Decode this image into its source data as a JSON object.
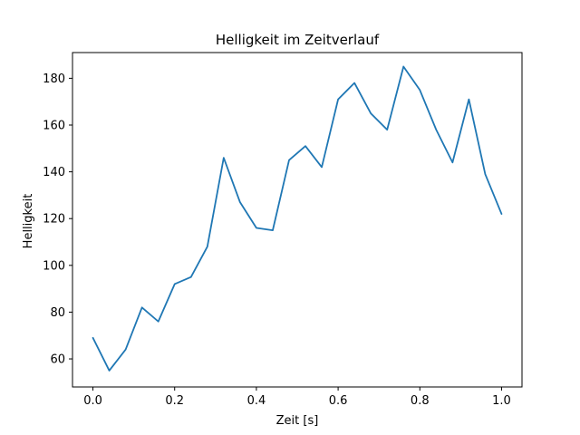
{
  "chart_data": {
    "type": "line",
    "title": "Helligkeit im Zeitverlauf",
    "xlabel": "Zeit [s]",
    "ylabel": "Helligkeit",
    "xlim": [
      -0.05,
      1.05
    ],
    "ylim": [
      48,
      191
    ],
    "xticks": [
      0.0,
      0.2,
      0.4,
      0.6,
      0.8,
      1.0
    ],
    "xtick_labels": [
      "0.0",
      "0.2",
      "0.4",
      "0.6",
      "0.8",
      "1.0"
    ],
    "yticks": [
      60,
      80,
      100,
      120,
      140,
      160,
      180
    ],
    "ytick_labels": [
      "60",
      "80",
      "100",
      "120",
      "140",
      "160",
      "180"
    ],
    "grid": false,
    "series": [
      {
        "name": "Helligkeit",
        "color": "#1f77b4",
        "x": [
          0.0,
          0.04,
          0.08,
          0.12,
          0.16,
          0.2,
          0.24,
          0.28,
          0.32,
          0.36,
          0.4,
          0.44,
          0.48,
          0.52,
          0.56,
          0.6,
          0.64,
          0.68,
          0.72,
          0.76,
          0.8,
          0.84,
          0.88,
          0.92,
          0.96,
          1.0
        ],
        "y": [
          69,
          55,
          64,
          82,
          76,
          92,
          95,
          108,
          146,
          127,
          116,
          115,
          145,
          151,
          142,
          171,
          178,
          165,
          158,
          185,
          175,
          158,
          144,
          171,
          139,
          122
        ]
      }
    ]
  }
}
